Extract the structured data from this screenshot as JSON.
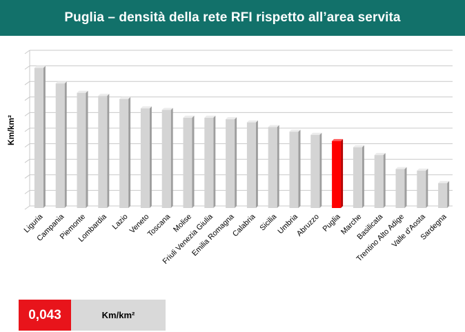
{
  "header": {
    "title": "Puglia – densità della rete RFI rispetto all’area servita"
  },
  "summary": {
    "value": "0,043",
    "unit": "Km/km²"
  },
  "colors": {
    "header_bg": "#12716a",
    "bar": "#d4d4d4",
    "highlight": "#ff0000",
    "value_box": "#e8141b",
    "unit_box": "#d9d9d9"
  },
  "chart_data": {
    "type": "bar",
    "title": "Puglia – densità della rete RFI rispetto all’area servita",
    "xlabel": "",
    "ylabel": "Km/km²",
    "ylim": [
      0,
      0.1
    ],
    "grid": true,
    "tick_labels_visible": false,
    "highlight": "Puglia",
    "categories": [
      "Liguria",
      "Campania",
      "Piemonte",
      "Lombardia",
      "Lazio",
      "Veneto",
      "Toscana",
      "Molise",
      "Friuli Venezia Giulia",
      "Emilia Romagna",
      "Calabria",
      "Sicilia",
      "Umbria",
      "Abruzzo",
      "Puglia",
      "Marche",
      "Basilicata",
      "Trentino Alto Adige",
      "Valle d'Aosta",
      "Sardegna"
    ],
    "values": [
      0.09,
      0.08,
      0.074,
      0.072,
      0.07,
      0.064,
      0.063,
      0.058,
      0.058,
      0.057,
      0.055,
      0.052,
      0.049,
      0.047,
      0.043,
      0.039,
      0.034,
      0.025,
      0.024,
      0.016
    ]
  }
}
